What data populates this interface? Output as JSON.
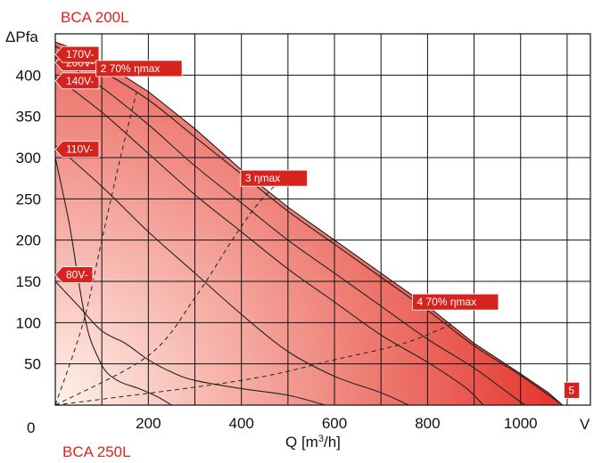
{
  "titles": {
    "top": "BCA 200L",
    "bottom": "BCA 250L"
  },
  "colors": {
    "title": "#e2231a",
    "fill_light": "#fff2ea",
    "fill_dark": "#e2231a",
    "tag": "#d6231d",
    "curve": "#222222"
  },
  "chart_data": {
    "type": "line",
    "xlabel_main": "Q [m",
    "xlabel_sup": "3",
    "xlabel_end": "/h]",
    "ylabel": "ΔPfa",
    "xlim": [
      0,
      1150
    ],
    "ylim": [
      0,
      450
    ],
    "x_ticks": [
      {
        "value": 200,
        "label": "200"
      },
      {
        "value": 400,
        "label": "400"
      },
      {
        "value": 600,
        "label": "600"
      },
      {
        "value": 800,
        "label": "800"
      },
      {
        "value": 1000,
        "label": "1000"
      }
    ],
    "y_ticks": [
      {
        "value": 50,
        "label": "50"
      },
      {
        "value": 100,
        "label": "100"
      },
      {
        "value": 150,
        "label": "150"
      },
      {
        "value": 200,
        "label": "200"
      },
      {
        "value": 250,
        "label": "250"
      },
      {
        "value": 300,
        "label": "300"
      },
      {
        "value": 350,
        "label": "350"
      },
      {
        "value": 400,
        "label": "400"
      }
    ],
    "x_origin_label": "0",
    "x_end_label": "V",
    "x_grid_step": 100,
    "y_grid_step": 50,
    "envelope": [
      [
        0,
        440
      ],
      [
        50,
        430
      ],
      [
        100,
        410
      ],
      [
        150,
        398
      ],
      [
        200,
        380
      ],
      [
        300,
        335
      ],
      [
        400,
        285
      ],
      [
        500,
        240
      ],
      [
        600,
        200
      ],
      [
        700,
        160
      ],
      [
        800,
        120
      ],
      [
        900,
        75
      ],
      [
        1000,
        38
      ],
      [
        1060,
        15
      ],
      [
        1080,
        5
      ],
      [
        1090,
        0
      ],
      [
        0,
        0
      ]
    ],
    "series": [
      {
        "voltage": "200V",
        "points": [
          [
            0,
            435
          ],
          [
            100,
            405
          ],
          [
            200,
            370
          ],
          [
            300,
            325
          ],
          [
            400,
            280
          ],
          [
            500,
            235
          ],
          [
            600,
            195
          ],
          [
            700,
            155
          ],
          [
            800,
            115
          ],
          [
            900,
            72
          ],
          [
            1000,
            36
          ],
          [
            1090,
            0
          ]
        ]
      },
      {
        "voltage": "170V",
        "points": [
          [
            0,
            422
          ],
          [
            100,
            385
          ],
          [
            200,
            340
          ],
          [
            300,
            290
          ],
          [
            400,
            245
          ],
          [
            500,
            200
          ],
          [
            600,
            160
          ],
          [
            700,
            120
          ],
          [
            800,
            80
          ],
          [
            900,
            45
          ],
          [
            980,
            12
          ],
          [
            1010,
            0
          ]
        ]
      },
      {
        "voltage": "140V",
        "points": [
          [
            0,
            398
          ],
          [
            100,
            355
          ],
          [
            200,
            305
          ],
          [
            300,
            255
          ],
          [
            400,
            210
          ],
          [
            500,
            165
          ],
          [
            600,
            125
          ],
          [
            700,
            85
          ],
          [
            800,
            52
          ],
          [
            880,
            22
          ],
          [
            920,
            0
          ]
        ]
      },
      {
        "voltage": "110V",
        "points": [
          [
            0,
            315
          ],
          [
            100,
            265
          ],
          [
            200,
            210
          ],
          [
            300,
            160
          ],
          [
            400,
            110
          ],
          [
            500,
            65
          ],
          [
            600,
            35
          ],
          [
            700,
            15
          ],
          [
            760,
            0
          ]
        ]
      },
      {
        "voltage": "80V",
        "points": [
          [
            0,
            150
          ],
          [
            50,
            120
          ],
          [
            100,
            90
          ],
          [
            150,
            75
          ],
          [
            200,
            55
          ],
          [
            250,
            40
          ],
          [
            300,
            30
          ],
          [
            400,
            20
          ],
          [
            500,
            12
          ],
          [
            580,
            0
          ]
        ]
      },
      {
        "voltage": "",
        "points": [
          [
            0,
            300
          ],
          [
            30,
            220
          ],
          [
            50,
            150
          ],
          [
            70,
            90
          ],
          [
            90,
            60
          ],
          [
            110,
            40
          ],
          [
            140,
            28
          ],
          [
            180,
            20
          ],
          [
            220,
            10
          ],
          [
            250,
            0
          ]
        ]
      }
    ],
    "efficiency_curves": [
      {
        "points": [
          [
            0,
            0
          ],
          [
            60,
            100
          ],
          [
            100,
            200
          ],
          [
            140,
            300
          ],
          [
            175,
            380
          ]
        ]
      },
      {
        "points": [
          [
            0,
            0
          ],
          [
            200,
            60
          ],
          [
            300,
            130
          ],
          [
            380,
            200
          ],
          [
            430,
            240
          ],
          [
            470,
            265
          ]
        ]
      },
      {
        "points": [
          [
            0,
            0
          ],
          [
            400,
            30
          ],
          [
            600,
            55
          ],
          [
            750,
            75
          ],
          [
            860,
            100
          ]
        ]
      }
    ],
    "voltage_tags": [
      {
        "label": "200V-",
        "x": 10,
        "y": 415
      },
      {
        "label": "170V-",
        "x": 10,
        "y": 425
      },
      {
        "label": "140V-",
        "x": 10,
        "y": 393
      },
      {
        "label": "110V-",
        "x": 10,
        "y": 310
      },
      {
        "label": "80V-",
        "x": 10,
        "y": 158
      }
    ],
    "point_tags": [
      {
        "label": "2   70% ηmax",
        "x": 180,
        "y": 408
      },
      {
        "label": "3    ηmax",
        "x": 470,
        "y": 275
      },
      {
        "label": "4   70% ηmax",
        "x": 860,
        "y": 125
      },
      {
        "label": "5",
        "x": 1110,
        "y": 18
      }
    ]
  }
}
